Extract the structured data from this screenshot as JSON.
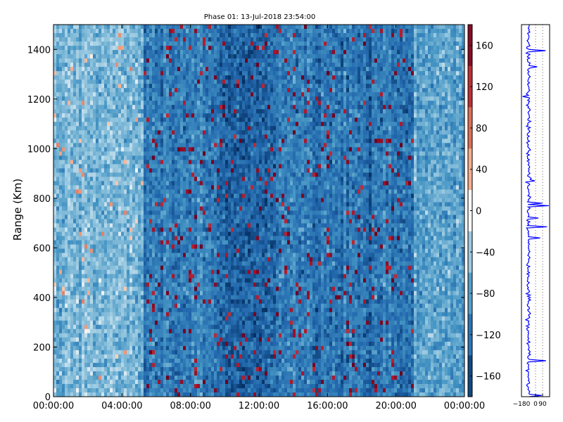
{
  "chart_data": [
    {
      "type": "heatmap",
      "title": "Phase 01: 13-Jul-2018 23:54:00",
      "xlabel": "",
      "ylabel": "Range (Km)",
      "xticks": [
        "00:00:00",
        "04:00:00",
        "08:00:00",
        "12:00:00",
        "16:00:00",
        "20:00:00",
        "00:00:00"
      ],
      "yticks": [
        "0",
        "200",
        "400",
        "600",
        "800",
        "1000",
        "1200",
        "1400"
      ],
      "ylim": [
        0,
        1500
      ],
      "xlim_hours": [
        0,
        24
      ],
      "colorbar": {
        "range": [
          -180,
          180
        ],
        "ticks": [
          "160",
          "120",
          "80",
          "40",
          "0",
          "−40",
          "−80",
          "−120",
          "−160"
        ],
        "colormap": "RdBu_r"
      },
      "time_profile": [
        {
          "start_hour": 0,
          "end_hour": 5.3,
          "mean_phase": -60
        },
        {
          "start_hour": 5.3,
          "end_hour": 9.5,
          "mean_phase": -110
        },
        {
          "start_hour": 9.5,
          "end_hour": 13.0,
          "mean_phase": -135
        },
        {
          "start_hour": 13.0,
          "end_hour": 21.0,
          "mean_phase": -115
        },
        {
          "start_hour": 21.0,
          "end_hour": 24,
          "mean_phase": -75
        }
      ]
    },
    {
      "type": "line",
      "xticks": [
        "−180",
        "0",
        "90"
      ],
      "xlim": [
        -180,
        180
      ],
      "ylim": [
        0,
        1500
      ],
      "color": "#0000ff",
      "mean_phase": -90
    }
  ]
}
